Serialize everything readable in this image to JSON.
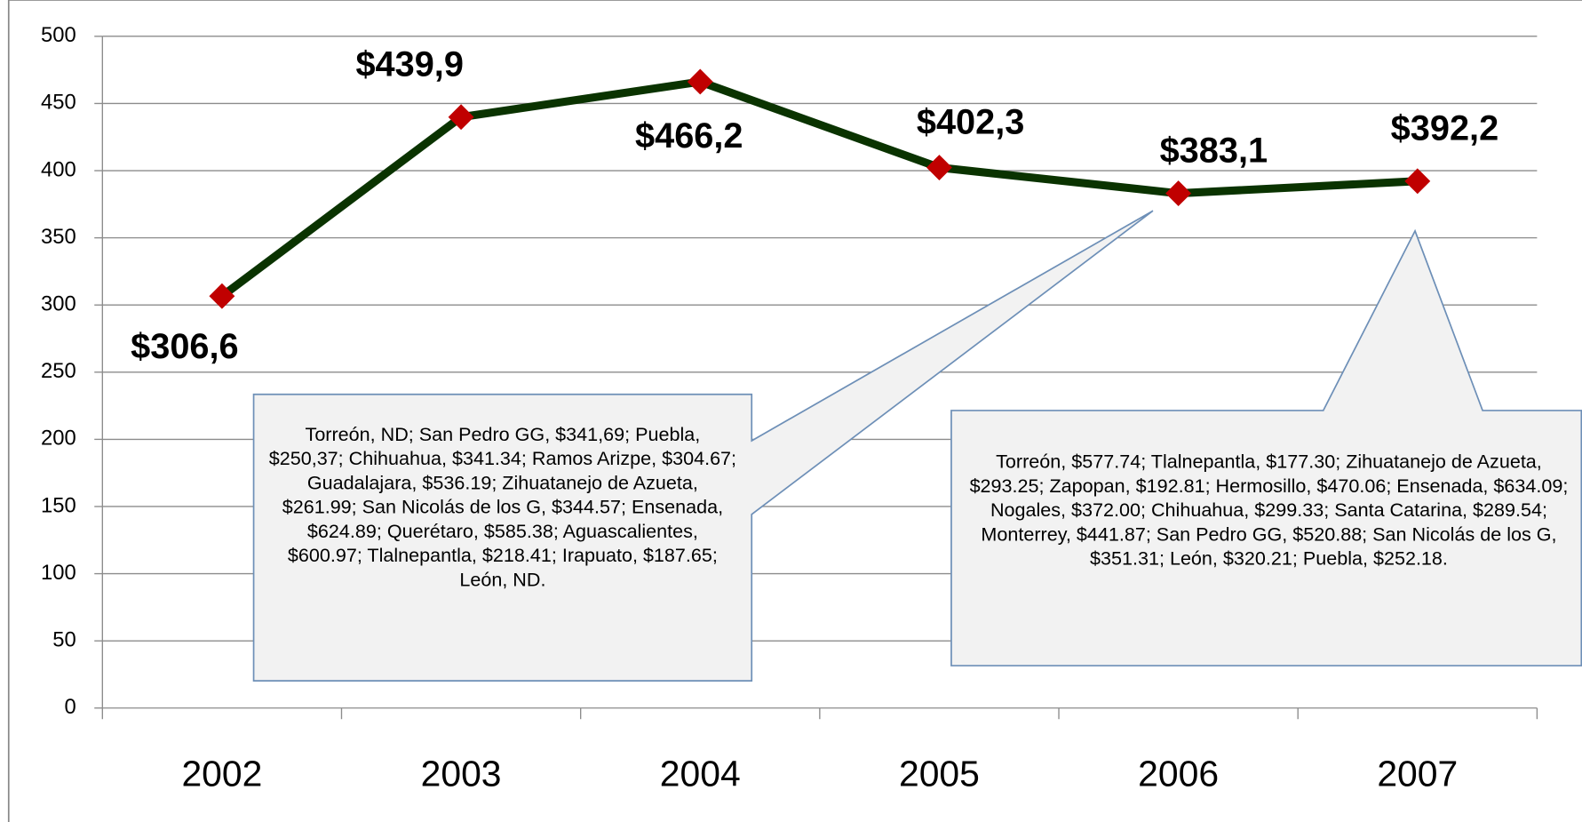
{
  "chart_data": {
    "type": "line",
    "categories": [
      "2002",
      "2003",
      "2004",
      "2005",
      "2006",
      "2007"
    ],
    "values": [
      306.6,
      439.9,
      466.2,
      402.3,
      383.1,
      392.2
    ],
    "value_labels": [
      "$306,6",
      "$439,9",
      "$466,2",
      "$402,3",
      "$383,1",
      "$392,2"
    ],
    "color": "#0a3300",
    "marker_color": "#c00000",
    "ylim": [
      0,
      500
    ],
    "yticks": [
      0,
      50,
      100,
      150,
      200,
      250,
      300,
      350,
      400,
      450,
      500
    ],
    "grid": true,
    "annotations": [
      "Torreón, ND; San Pedro GG, $341,69; Puebla, $250,37; Chihuahua, $341.34; Ramos Arizpe, $304.67; Guadalajara, $536.19; Zihuatanejo de Azueta, $261.99; San Nicolás de los G, $344.57; Ensenada, $624.89; Querétaro, $585.38; Aguascalientes, $600.97; Tlalnepantla, $218.41; Irapuato, $187.65; León, ND.",
      "Torreón, $577.74; Tlalnepantla, $177.30; Zihuatanejo de Azueta, $293.25; Zapopan, $192.81; Hermosillo, $470.06; Ensenada, $634.09; Nogales, $372.00; Chihuahua, $299.33; Santa Catarina, $289.54; Monterrey, $441.87; San Pedro GG, $520.88; San Nicolás de los G, $351.31; León, $320.21; Puebla, $252.18."
    ]
  }
}
